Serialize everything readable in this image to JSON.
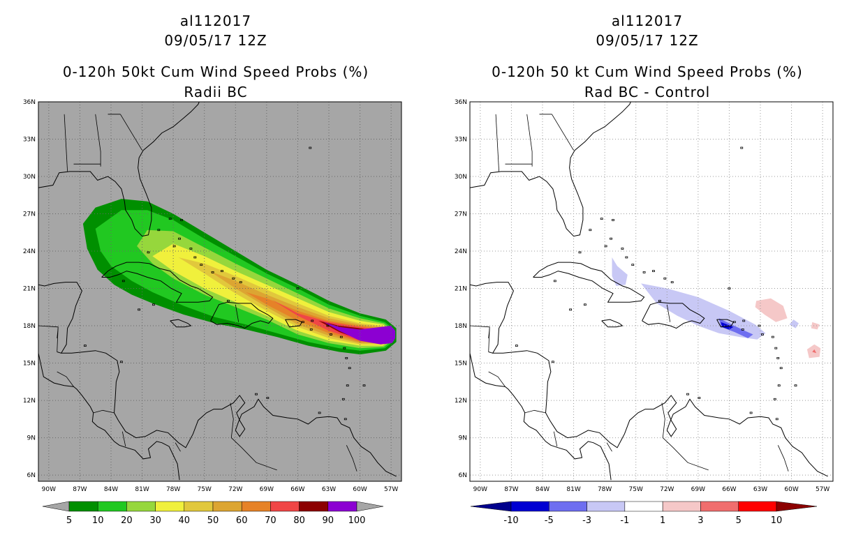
{
  "left_panel": {
    "title_lines": [
      "al112017",
      "09/05/17 12Z",
      "0-120h 50kt Cum Wind Speed Probs (%)",
      "Radii BC"
    ],
    "background_color": "#a6a6a6",
    "colorbar": {
      "labels": [
        "5",
        "10",
        "20",
        "30",
        "40",
        "50",
        "60",
        "70",
        "80",
        "90",
        "100"
      ],
      "colors": [
        "#008f00",
        "#21c821",
        "#96d73c",
        "#f0f03c",
        "#e1c83c",
        "#dca532",
        "#e68228",
        "#f04646",
        "#8c0000",
        "#8c00d2"
      ],
      "end_color": "#a6a6a6"
    }
  },
  "right_panel": {
    "title_lines": [
      "al112017",
      "09/05/17 12Z",
      "0-120h 50 kt Cum Wind Speed Probs (%)",
      "Rad BC - Control"
    ],
    "background_color": "#ffffff",
    "colorbar": {
      "labels": [
        "-10",
        "-5",
        "-3",
        "-1",
        "1",
        "3",
        "5",
        "10"
      ],
      "colors": [
        "#0000d2",
        "#6e6ef0",
        "#c8c8f5",
        "#ffffff",
        "#f5c8c8",
        "#f06e6e",
        "#ff0000"
      ],
      "low_end_color": "#00008c",
      "high_end_color": "#8c0000"
    }
  },
  "axes": {
    "lat_labels": [
      "36N",
      "33N",
      "30N",
      "27N",
      "24N",
      "21N",
      "18N",
      "15N",
      "12N",
      "9N",
      "6N"
    ],
    "lon_labels": [
      "90W",
      "87W",
      "84W",
      "81W",
      "78W",
      "75W",
      "72W",
      "69W",
      "66W",
      "63W",
      "60W",
      "57W"
    ]
  }
}
